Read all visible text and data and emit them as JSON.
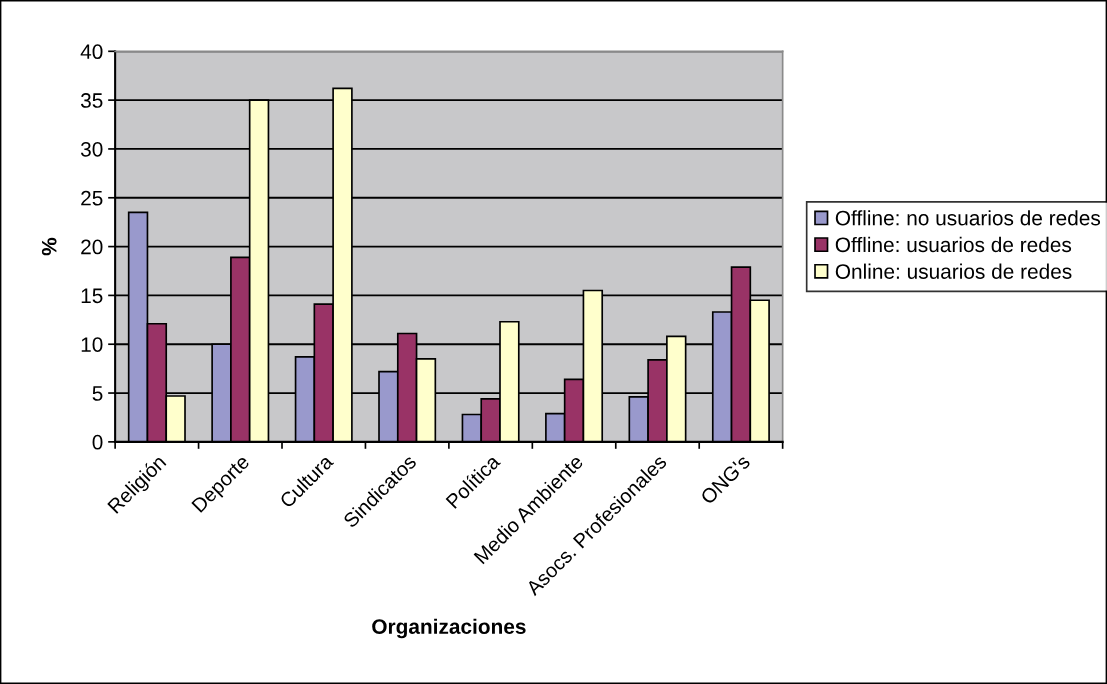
{
  "chart_data": {
    "type": "bar",
    "categories": [
      "Religión",
      "Deporte",
      "Cultura",
      "Sindicatos",
      "Política",
      "Medio Ambiente",
      "Asocs. Profesionales",
      "ONG's"
    ],
    "series": [
      {
        "name": "Offline: no usuarios de redes",
        "color": "#9999cc",
        "values": [
          23.5,
          10,
          8.7,
          7.2,
          2.8,
          2.9,
          4.6,
          13.3
        ]
      },
      {
        "name": "Offline: usuarios de redes",
        "color": "#993366",
        "values": [
          12.1,
          18.9,
          14.1,
          11.1,
          4.4,
          6.4,
          8.4,
          17.9
        ]
      },
      {
        "name": "Online: usuarios de redes",
        "color": "#ffffcc",
        "values": [
          4.7,
          35.0,
          36.2,
          8.5,
          12.3,
          15.5,
          10.8,
          14.5
        ]
      }
    ],
    "xlabel": "Organizaciones",
    "ylabel": "%",
    "ylim": [
      0,
      40
    ],
    "yticks": [
      0,
      5,
      10,
      15,
      20,
      25,
      30,
      35,
      40
    ],
    "grid": "y",
    "legend": "right"
  }
}
